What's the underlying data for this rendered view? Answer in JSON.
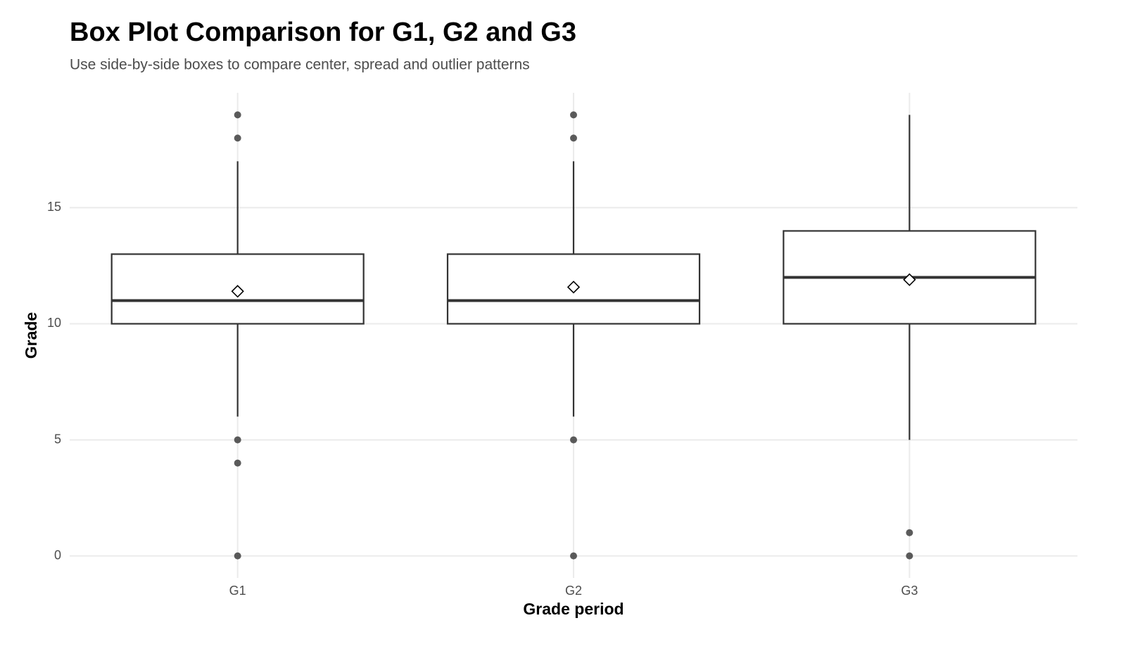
{
  "chart_data": {
    "type": "box",
    "title": "Box Plot Comparison for G1, G2 and G3",
    "subtitle": "Use side-by-side boxes to compare center, spread and outlier patterns",
    "x_label": "Grade period",
    "y_label": "Grade",
    "categories": [
      "G1",
      "G2",
      "G3"
    ],
    "boxes": [
      {
        "whislo": 6,
        "q1": 10,
        "median": 11,
        "q3": 13,
        "whishi": 17,
        "mean": 11.4,
        "outliers": [
          19,
          18,
          5,
          4,
          0
        ]
      },
      {
        "whislo": 6,
        "q1": 10,
        "median": 11,
        "q3": 13,
        "whishi": 17,
        "mean": 11.58,
        "outliers": [
          19,
          18,
          5,
          0
        ]
      },
      {
        "whislo": 5,
        "q1": 10,
        "median": 12,
        "q3": 14,
        "whishi": 19,
        "mean": 11.9,
        "outliers": [
          1,
          0
        ]
      }
    ],
    "color": "#333333",
    "ylim": [
      -0.95,
      19.95
    ],
    "yticks": [
      0,
      5,
      10,
      15
    ],
    "grid": true
  }
}
